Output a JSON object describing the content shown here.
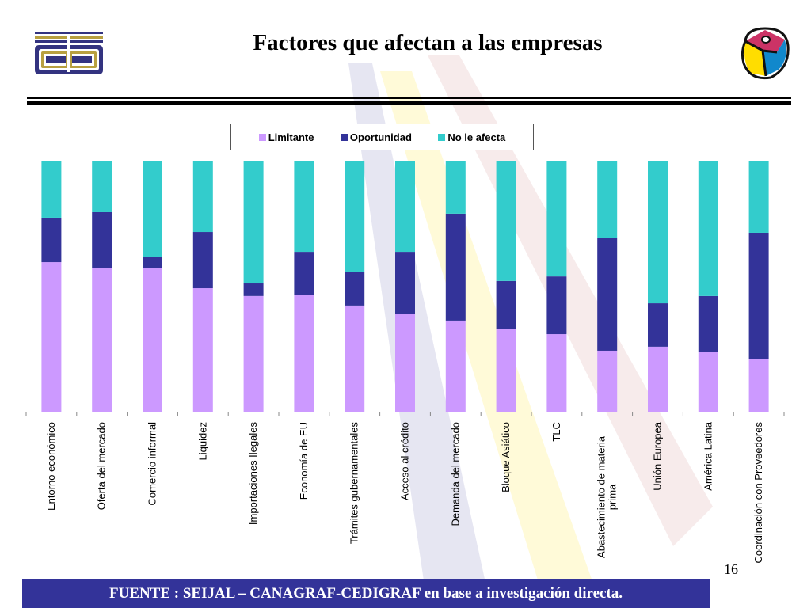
{
  "slide": {
    "title": "Factores que afectan a las empresas",
    "footer": "FUENTE :  SEIJAL – CANAGRAF-CEDIGRAF en base a investigación directa.",
    "page_number": "16",
    "logo_left": "cedigraf-logo",
    "logo_right": "canagraf-logo"
  },
  "colors": {
    "limitante": "#cc99ff",
    "oportunidad": "#333399",
    "no_afecta": "#33cccc",
    "footer_bg": "#333399"
  },
  "chart_data": {
    "type": "bar",
    "stacked": true,
    "percent_stacked": true,
    "title": "",
    "xlabel": "",
    "ylabel": "",
    "ylim": [
      0,
      100
    ],
    "grid": false,
    "legend": {
      "placement": "top",
      "entries": [
        "Limitante",
        "Oportunidad",
        "No le afecta"
      ]
    },
    "categories": [
      "Entorno económico",
      "Oferta del mercado",
      "Comercio informal",
      "Liquidez",
      "Importaciones Ilegales",
      "Economía de EU",
      "Trámites gubernamentales",
      "Acceso al crédito",
      "Demanda del mercado",
      "Bloque Asiático",
      "TLC",
      "Abastecimiento de materia prima",
      "Unión Europea",
      "América Latina",
      "Coordinación con Proveedores"
    ],
    "series": [
      {
        "name": "Limitante",
        "values": [
          59.6,
          57.1,
          57.4,
          49.2,
          46.1,
          46.4,
          42.3,
          38.8,
          36.3,
          33.1,
          30.9,
          24.3,
          25.9,
          23.7,
          21.1
        ]
      },
      {
        "name": "Oportunidad",
        "values": [
          17.7,
          22.4,
          4.4,
          22.4,
          5.0,
          17.3,
          13.5,
          24.9,
          42.6,
          19.0,
          23.0,
          44.8,
          17.3,
          22.4,
          50.2
        ]
      },
      {
        "name": "No le afecta",
        "values": [
          22.7,
          20.5,
          38.2,
          28.4,
          48.9,
          36.3,
          44.2,
          36.3,
          21.1,
          47.9,
          46.1,
          30.9,
          56.8,
          53.9,
          28.7
        ]
      }
    ]
  }
}
